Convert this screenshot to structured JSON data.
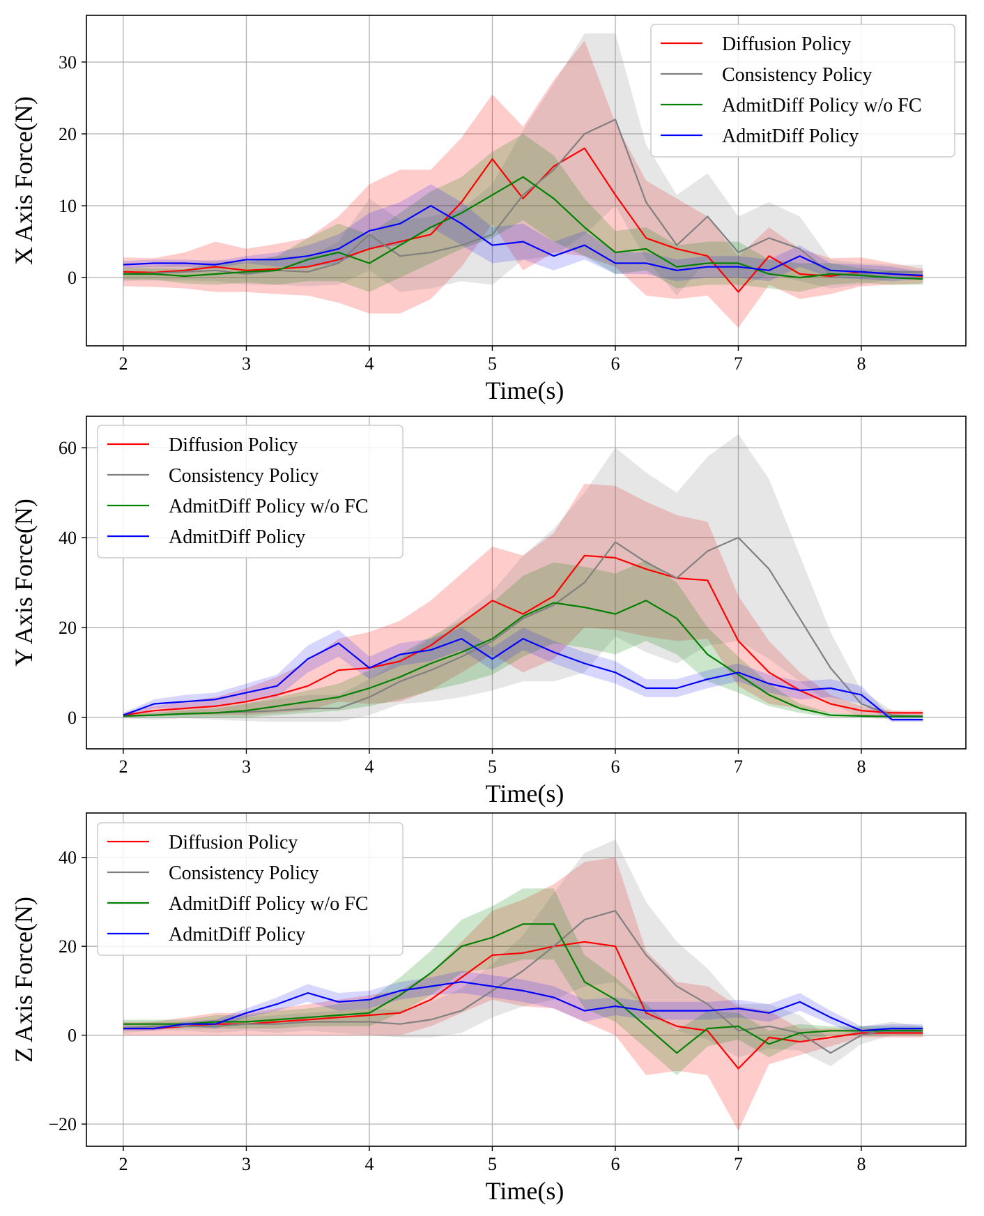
{
  "chart_data": [
    {
      "type": "line",
      "xlabel": "Time(s)",
      "ylabel": "X Axis Force(N)",
      "xlim": [
        1.7,
        8.85
      ],
      "ylim": [
        -9.5,
        36.5
      ],
      "xticks": [
        2,
        3,
        4,
        5,
        6,
        7,
        8
      ],
      "yticks": [
        0,
        10,
        20,
        30
      ],
      "ytick_labels": [
        "0",
        "10",
        "20",
        "30"
      ],
      "grid": true,
      "legend": "top-right",
      "x": [
        2.0,
        2.25,
        2.5,
        2.75,
        3.0,
        3.25,
        3.5,
        3.75,
        4.0,
        4.25,
        4.5,
        4.75,
        5.0,
        5.25,
        5.5,
        5.75,
        6.0,
        6.25,
        6.5,
        6.75,
        7.0,
        7.25,
        7.5,
        7.75,
        8.0,
        8.25,
        8.5
      ],
      "series": [
        {
          "name": "Diffusion Policy",
          "color": "#ff0000",
          "values": [
            0.8,
            0.7,
            1.0,
            1.5,
            1.0,
            1.2,
            1.5,
            2.5,
            4.0,
            5.0,
            6.0,
            10.5,
            16.5,
            11.0,
            15.5,
            18.0,
            11.5,
            5.5,
            4.0,
            3.0,
            -2.0,
            3.0,
            0.5,
            0.2,
            0.8,
            0.5,
            0.2
          ],
          "band": [
            2.0,
            2.0,
            2.5,
            3.5,
            3.0,
            3.5,
            4.0,
            6.0,
            9.0,
            10.0,
            9.0,
            9.0,
            9.0,
            10.0,
            12.0,
            15.0,
            10.0,
            8.0,
            7.0,
            5.5,
            5.0,
            4.0,
            3.5,
            2.5,
            2.0,
            1.5,
            1.0
          ]
        },
        {
          "name": "Consistency Policy",
          "color": "#808080",
          "values": [
            0.5,
            0.6,
            0.8,
            1.0,
            0.5,
            1.0,
            0.8,
            2.0,
            6.0,
            3.0,
            3.5,
            4.5,
            6.0,
            11.5,
            15.0,
            20.0,
            22.0,
            10.5,
            4.5,
            8.5,
            3.5,
            5.5,
            4.0,
            0.5,
            0.5,
            0.8,
            0.8
          ],
          "band": [
            1.0,
            1.0,
            1.2,
            1.5,
            1.5,
            2.0,
            2.0,
            3.0,
            5.0,
            5.0,
            5.0,
            5.0,
            7.0,
            9.0,
            12.0,
            14.0,
            12.0,
            8.0,
            7.0,
            6.0,
            5.0,
            5.0,
            4.5,
            2.0,
            1.5,
            1.0,
            1.0
          ]
        },
        {
          "name": "AdmitDiff Policy w/o FC",
          "color": "#008000",
          "values": [
            0.5,
            0.5,
            0.2,
            0.5,
            0.8,
            1.0,
            2.5,
            3.5,
            2.0,
            4.5,
            7.0,
            9.0,
            11.5,
            14.0,
            11.0,
            7.0,
            3.5,
            4.0,
            1.5,
            2.0,
            2.0,
            0.5,
            0.0,
            0.5,
            0.3,
            0.0,
            -0.2
          ],
          "band": [
            0.8,
            0.8,
            1.0,
            1.5,
            1.5,
            2.0,
            3.0,
            4.0,
            4.0,
            4.5,
            5.0,
            5.0,
            6.0,
            6.0,
            6.0,
            4.0,
            3.0,
            3.0,
            3.0,
            3.0,
            3.0,
            2.0,
            2.0,
            1.5,
            1.0,
            1.0,
            0.8
          ]
        },
        {
          "name": "AdmitDiff Policy",
          "color": "#0000ff",
          "values": [
            1.8,
            2.0,
            2.0,
            1.8,
            2.5,
            2.5,
            3.0,
            4.0,
            6.5,
            7.5,
            10.0,
            7.5,
            4.5,
            5.0,
            3.0,
            4.5,
            2.0,
            2.0,
            1.0,
            1.5,
            1.5,
            1.0,
            3.0,
            1.0,
            0.8,
            0.5,
            0.3
          ],
          "band": [
            0.5,
            0.5,
            0.5,
            0.5,
            0.5,
            1.0,
            1.5,
            2.0,
            2.5,
            3.0,
            3.0,
            3.0,
            2.5,
            2.5,
            2.0,
            2.0,
            1.5,
            1.5,
            1.5,
            1.5,
            1.5,
            1.5,
            1.5,
            1.0,
            1.0,
            1.0,
            0.5
          ]
        }
      ]
    },
    {
      "type": "line",
      "xlabel": "Time(s)",
      "ylabel": "Y Axis Force(N)",
      "xlim": [
        1.7,
        8.85
      ],
      "ylim": [
        -7,
        67
      ],
      "xticks": [
        2,
        3,
        4,
        5,
        6,
        7,
        8
      ],
      "yticks": [
        0,
        20,
        40,
        60
      ],
      "ytick_labels": [
        "0",
        "20",
        "40",
        "60"
      ],
      "grid": true,
      "legend": "top-left",
      "x": [
        2.0,
        2.25,
        2.5,
        2.75,
        3.0,
        3.25,
        3.5,
        3.75,
        4.0,
        4.25,
        4.5,
        4.75,
        5.0,
        5.25,
        5.5,
        5.75,
        6.0,
        6.25,
        6.5,
        6.75,
        7.0,
        7.25,
        7.5,
        7.75,
        8.0,
        8.25,
        8.5
      ],
      "series": [
        {
          "name": "Diffusion Policy",
          "color": "#ff0000",
          "values": [
            0.5,
            1.5,
            2.0,
            2.5,
            3.5,
            5.0,
            7.0,
            10.5,
            11.0,
            12.5,
            16.0,
            21.0,
            26.0,
            23.0,
            27.0,
            36.0,
            35.5,
            33.0,
            31.0,
            30.5,
            17.0,
            10.0,
            6.0,
            3.0,
            1.5,
            1.0,
            1.0
          ],
          "band": [
            0.5,
            1.0,
            1.5,
            2.0,
            3.0,
            4.0,
            5.5,
            7.0,
            8.0,
            9.0,
            10.0,
            11.0,
            12.0,
            13.0,
            14.0,
            16.0,
            16.0,
            15.0,
            14.0,
            13.0,
            10.0,
            7.0,
            4.0,
            2.0,
            1.0,
            0.5,
            0.5
          ]
        },
        {
          "name": "Consistency Policy",
          "color": "#808080",
          "values": [
            0.3,
            0.5,
            0.8,
            1.0,
            1.2,
            1.5,
            2.0,
            2.0,
            4.5,
            8.0,
            10.5,
            13.5,
            17.0,
            22.0,
            25.0,
            30.0,
            39.0,
            34.5,
            31.0,
            37.0,
            40.0,
            33.0,
            22.0,
            11.0,
            3.0,
            0.5,
            0.3
          ],
          "band": [
            0.5,
            1.0,
            1.0,
            1.5,
            2.0,
            2.5,
            3.0,
            3.0,
            4.0,
            5.0,
            7.0,
            9.0,
            11.0,
            14.0,
            17.0,
            20.0,
            21.0,
            20.0,
            19.0,
            21.0,
            23.0,
            20.0,
            14.0,
            8.0,
            3.0,
            1.0,
            0.5
          ]
        },
        {
          "name": "AdmitDiff Policy w/o FC",
          "color": "#008000",
          "values": [
            0.3,
            0.5,
            0.8,
            1.0,
            1.5,
            2.5,
            3.5,
            4.5,
            6.5,
            9.0,
            12.0,
            14.5,
            17.5,
            22.5,
            25.5,
            24.5,
            23.0,
            26.0,
            22.0,
            14.0,
            9.5,
            5.0,
            2.0,
            0.5,
            0.3,
            0.2,
            0.2
          ],
          "band": [
            0.3,
            0.5,
            0.8,
            1.0,
            1.5,
            2.0,
            2.5,
            3.0,
            4.0,
            5.0,
            6.0,
            7.0,
            8.0,
            9.0,
            9.0,
            9.0,
            9.0,
            9.0,
            8.0,
            6.0,
            4.0,
            2.5,
            1.0,
            0.5,
            0.3,
            0.2,
            0.2
          ],
          "note": "band: half-width of shaded region"
        },
        {
          "name": "AdmitDiff Policy",
          "color": "#0000ff",
          "values": [
            0.5,
            3.0,
            3.5,
            4.0,
            5.5,
            7.0,
            13.0,
            16.5,
            11.0,
            14.0,
            15.0,
            17.5,
            13.0,
            17.5,
            14.5,
            12.0,
            10.0,
            6.5,
            6.5,
            8.5,
            10.0,
            7.5,
            6.0,
            6.5,
            5.0,
            -0.5,
            -0.5
          ],
          "band": [
            0.5,
            1.0,
            1.5,
            1.5,
            2.0,
            2.5,
            3.0,
            3.0,
            2.5,
            2.5,
            2.5,
            2.5,
            2.5,
            2.5,
            2.5,
            2.5,
            2.5,
            2.0,
            2.0,
            2.0,
            2.0,
            2.0,
            2.0,
            2.0,
            2.0,
            0.5,
            0.5
          ]
        }
      ]
    },
    {
      "type": "line",
      "xlabel": "Time(s)",
      "ylabel": "Z Axis Force(N)",
      "xlim": [
        1.7,
        8.85
      ],
      "ylim": [
        -25,
        50
      ],
      "xticks": [
        2,
        3,
        4,
        5,
        6,
        7,
        8
      ],
      "yticks": [
        -20,
        0,
        20,
        40
      ],
      "ytick_labels": [
        "−20",
        "0",
        "20",
        "40"
      ],
      "grid": true,
      "legend": "top-left",
      "x": [
        2.0,
        2.25,
        2.5,
        2.75,
        3.0,
        3.25,
        3.5,
        3.75,
        4.0,
        4.25,
        4.5,
        4.75,
        5.0,
        5.25,
        5.5,
        5.75,
        6.0,
        6.25,
        6.5,
        6.75,
        7.0,
        7.25,
        7.5,
        7.75,
        8.0,
        8.25,
        8.5
      ],
      "series": [
        {
          "name": "Diffusion Policy",
          "color": "#ff0000",
          "values": [
            1.5,
            1.5,
            2.0,
            2.5,
            2.5,
            3.0,
            3.5,
            4.0,
            4.5,
            5.0,
            8.0,
            13.0,
            18.0,
            18.5,
            20.0,
            21.0,
            20.0,
            5.0,
            2.0,
            1.0,
            -7.5,
            -0.5,
            -1.5,
            -0.5,
            0.5,
            0.5,
            0.5
          ],
          "band": [
            1.5,
            1.5,
            2.0,
            2.5,
            2.5,
            3.0,
            3.5,
            4.0,
            4.5,
            5.0,
            6.0,
            8.0,
            10.0,
            12.0,
            14.0,
            18.0,
            20.0,
            14.0,
            10.0,
            10.0,
            14.0,
            6.0,
            3.0,
            2.0,
            1.0,
            1.0,
            1.0
          ]
        },
        {
          "name": "Consistency Policy",
          "color": "#808080",
          "values": [
            1.5,
            2.0,
            2.0,
            2.0,
            2.5,
            2.5,
            3.0,
            3.0,
            3.0,
            2.5,
            3.5,
            5.5,
            10.0,
            14.5,
            20.0,
            26.0,
            28.0,
            18.0,
            11.0,
            7.0,
            1.0,
            2.0,
            0.5,
            -4.0,
            0.0,
            1.5,
            1.0
          ],
          "band": [
            1.0,
            1.0,
            1.0,
            1.5,
            1.5,
            2.0,
            2.0,
            2.5,
            3.0,
            3.0,
            4.0,
            5.0,
            6.0,
            8.0,
            12.0,
            15.0,
            16.0,
            12.0,
            10.0,
            8.0,
            6.0,
            5.0,
            4.0,
            3.0,
            2.0,
            1.5,
            1.0
          ]
        },
        {
          "name": "AdmitDiff Policy w/o FC",
          "color": "#008000",
          "values": [
            2.5,
            2.5,
            2.5,
            3.0,
            3.0,
            3.5,
            4.0,
            4.5,
            5.0,
            9.0,
            14.0,
            20.0,
            22.0,
            25.0,
            25.0,
            12.0,
            8.0,
            2.0,
            -4.0,
            1.5,
            2.0,
            -2.0,
            0.5,
            1.0,
            1.0,
            1.0,
            1.0
          ],
          "band": [
            1.0,
            1.0,
            1.0,
            1.5,
            1.5,
            2.0,
            2.0,
            2.5,
            3.0,
            4.0,
            5.0,
            6.0,
            7.0,
            8.0,
            8.0,
            6.0,
            5.0,
            5.0,
            5.0,
            4.0,
            3.0,
            3.0,
            2.0,
            1.0,
            1.0,
            1.0,
            1.0
          ]
        },
        {
          "name": "AdmitDiff Policy",
          "color": "#0000ff",
          "values": [
            1.5,
            1.5,
            2.5,
            2.5,
            5.0,
            7.0,
            9.5,
            7.5,
            8.0,
            10.0,
            11.0,
            12.0,
            11.0,
            10.0,
            8.5,
            5.5,
            6.5,
            5.5,
            5.5,
            5.5,
            6.0,
            5.0,
            7.5,
            4.0,
            1.0,
            1.5,
            1.5
          ],
          "band": [
            0.5,
            0.5,
            0.5,
            1.0,
            1.0,
            1.5,
            2.0,
            2.0,
            2.0,
            2.0,
            2.0,
            2.5,
            2.5,
            2.5,
            2.5,
            2.5,
            2.0,
            2.0,
            2.0,
            2.0,
            2.0,
            2.0,
            2.0,
            1.5,
            1.0,
            1.0,
            1.0
          ]
        }
      ]
    }
  ]
}
